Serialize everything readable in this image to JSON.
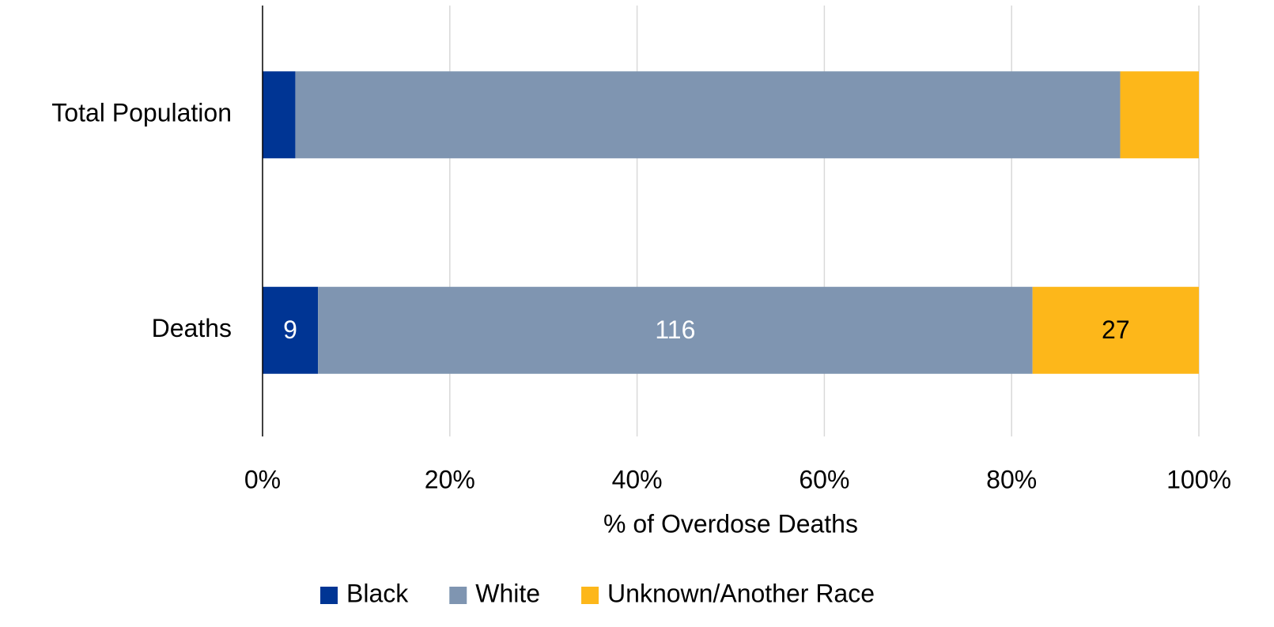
{
  "chart_data": {
    "type": "bar",
    "orientation": "horizontal",
    "stacked": "percent",
    "categories": [
      "Total Population",
      "Deaths"
    ],
    "series": [
      {
        "name": "Black",
        "color": "#003594",
        "label_color": "#ffffff",
        "values": [
          3.5,
          9
        ],
        "value_labels": [
          null,
          "9"
        ]
      },
      {
        "name": "White",
        "color": "#7f95b1",
        "label_color": "#ffffff",
        "values": [
          88.1,
          116
        ],
        "value_labels": [
          null,
          "116"
        ]
      },
      {
        "name": "Unknown/Another Race",
        "color": "#fdb71a",
        "label_color": "#000000",
        "values": [
          8.4,
          27
        ],
        "value_labels": [
          null,
          "27"
        ]
      }
    ],
    "xlabel": "% of Overdose Deaths",
    "xlim": [
      0,
      100
    ],
    "xticks": [
      {
        "value": 0,
        "label": "0%"
      },
      {
        "value": 20,
        "label": "20%"
      },
      {
        "value": 40,
        "label": "40%"
      },
      {
        "value": 60,
        "label": "60%"
      },
      {
        "value": 80,
        "label": "80%"
      },
      {
        "value": 100,
        "label": "100%"
      }
    ],
    "grid": true,
    "legend": "bottom"
  }
}
